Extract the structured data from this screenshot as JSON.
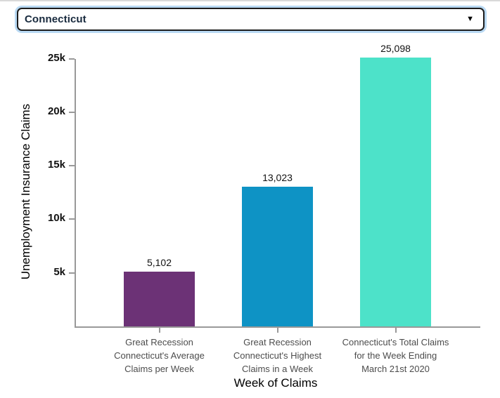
{
  "dropdown": {
    "selected_value": "Connecticut",
    "caret_icon": "▼"
  },
  "chart_data": {
    "type": "bar",
    "title": "",
    "xlabel": "Week of Claims",
    "ylabel": "Unemployment Insurance Claims",
    "ylim": [
      0,
      25000
    ],
    "yticks": [
      {
        "value": 5000,
        "label": "5k"
      },
      {
        "value": 10000,
        "label": "10k"
      },
      {
        "value": 15000,
        "label": "15k"
      },
      {
        "value": 20000,
        "label": "20k"
      },
      {
        "value": 25000,
        "label": "25k"
      }
    ],
    "grid": false,
    "legend": "none",
    "bars": [
      {
        "category_lines": [
          "Great Recession",
          "Connecticut's Average",
          "Claims per Week"
        ],
        "value": 5102,
        "value_label": "5,102",
        "color": "#6C3276"
      },
      {
        "category_lines": [
          "Great Recession",
          "Connecticut's Highest",
          "Claims in a Week"
        ],
        "value": 13023,
        "value_label": "13,023",
        "color": "#0E93C5"
      },
      {
        "category_lines": [
          "Connecticut's Total Claims",
          "for the Week Ending",
          "March 21st 2020"
        ],
        "value": 25098,
        "value_label": "25,098",
        "color": "#4DE2C9"
      }
    ],
    "axis_color": "#999999",
    "tick_label_color": "#111111",
    "category_label_color": "#4C4C4C"
  }
}
